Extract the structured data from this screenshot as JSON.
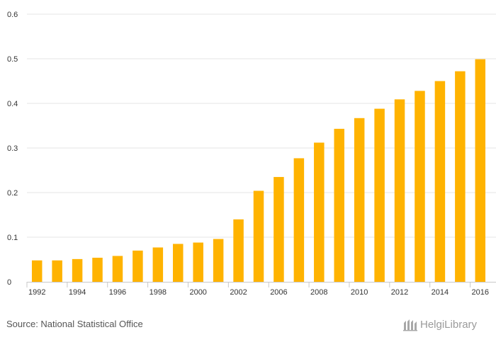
{
  "chart_data": {
    "type": "bar",
    "title": "",
    "xlabel": "",
    "ylabel": "",
    "ylim": [
      0,
      0.6
    ],
    "yticks": [
      "0",
      "0.1",
      "0.2",
      "0.3",
      "0.4",
      "0.5",
      "0.6"
    ],
    "categories": [
      "1992",
      "1993",
      "1994",
      "1995",
      "1996",
      "1997",
      "1998",
      "1999",
      "2000",
      "2001",
      "2002",
      "2004",
      "2006",
      "2007",
      "2008",
      "2009",
      "2010",
      "2011",
      "2012",
      "2013",
      "2014",
      "2015",
      "2016"
    ],
    "xtick_labels": [
      "1992",
      "1994",
      "1996",
      "1998",
      "2000",
      "2002",
      "2006",
      "2008",
      "2010",
      "2012",
      "2014",
      "2016"
    ],
    "values": [
      0.048,
      0.048,
      0.051,
      0.054,
      0.058,
      0.07,
      0.077,
      0.085,
      0.088,
      0.096,
      0.14,
      0.204,
      0.235,
      0.277,
      0.312,
      0.343,
      0.367,
      0.388,
      0.409,
      0.428,
      0.45,
      0.472,
      0.499
    ],
    "bar_color": "#ffb300",
    "grid": true
  },
  "footer": {
    "source": "Source: National Statistical Office",
    "brand": "HelgiLibrary"
  },
  "colors": {
    "grid": "#e6e6e6",
    "text": "#333333",
    "logo": "#9a9a9a"
  }
}
